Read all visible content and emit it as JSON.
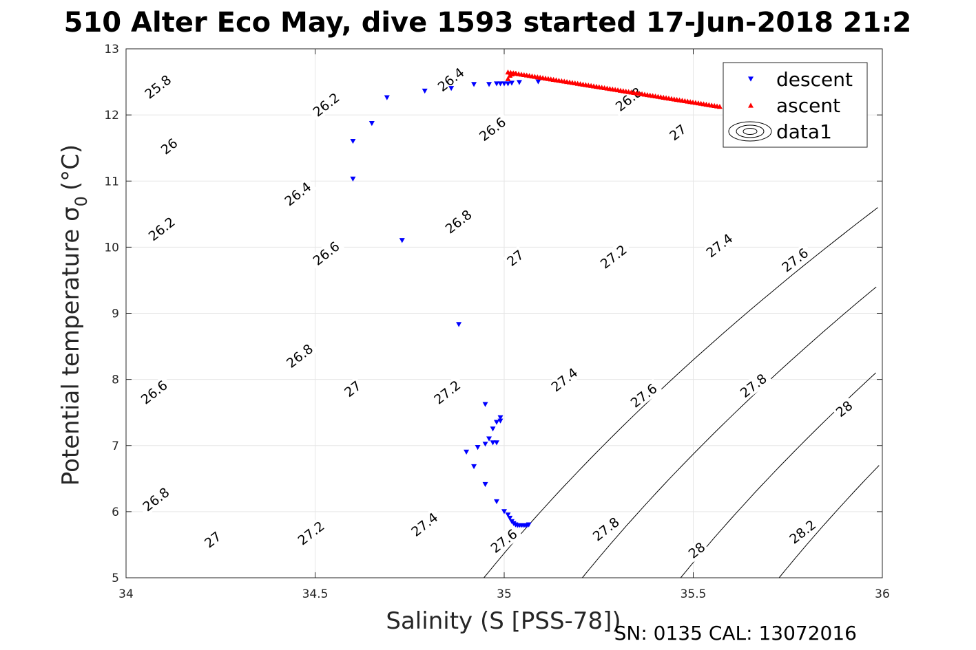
{
  "chart_data": {
    "type": "scatter",
    "title": "510 Alter Eco May, dive 1593 started 17-Jun-2018 21:2",
    "xlabel": "Salinity (S [PSS-78])",
    "ylabel": "Potential temperature σ",
    "ylabel_sub": "0",
    "ylabel_unit": "(°C)",
    "xlim": [
      34,
      36
    ],
    "ylim": [
      5,
      13
    ],
    "xticks": [
      "34",
      "34.5",
      "35",
      "35.5",
      "36"
    ],
    "yticks": [
      "5",
      "6",
      "7",
      "8",
      "9",
      "10",
      "11",
      "12",
      "13"
    ],
    "grid": true,
    "legend_position": "top-right",
    "footer": "SN: 0135  CAL: 13072016",
    "series": [
      {
        "name": "descent",
        "marker": "triangle-down",
        "color": "#0000ff",
        "points": [
          [
            34.6,
            11.6
          ],
          [
            34.6,
            11.03
          ],
          [
            34.65,
            11.87
          ],
          [
            34.69,
            12.26
          ],
          [
            34.79,
            12.36
          ],
          [
            34.86,
            12.4
          ],
          [
            34.92,
            12.46
          ],
          [
            34.96,
            12.46
          ],
          [
            34.98,
            12.47
          ],
          [
            34.99,
            12.47
          ],
          [
            35.0,
            12.47
          ],
          [
            35.01,
            12.47
          ],
          [
            35.02,
            12.48
          ],
          [
            35.04,
            12.49
          ],
          [
            35.09,
            12.5
          ],
          [
            34.73,
            10.1
          ],
          [
            34.88,
            8.83
          ],
          [
            34.95,
            7.62
          ],
          [
            34.99,
            7.42
          ],
          [
            34.99,
            7.37
          ],
          [
            34.98,
            7.35
          ],
          [
            34.97,
            7.25
          ],
          [
            34.96,
            7.1
          ],
          [
            34.95,
            7.02
          ],
          [
            34.97,
            7.04
          ],
          [
            34.98,
            7.04
          ],
          [
            34.93,
            6.97
          ],
          [
            34.9,
            6.9
          ],
          [
            34.92,
            6.68
          ],
          [
            34.95,
            6.41
          ],
          [
            34.98,
            6.15
          ],
          [
            35.0,
            6.0
          ],
          [
            35.01,
            5.95
          ],
          [
            35.015,
            5.9
          ],
          [
            35.02,
            5.85
          ],
          [
            35.025,
            5.82
          ],
          [
            35.03,
            5.8
          ],
          [
            35.035,
            5.79
          ],
          [
            35.04,
            5.79
          ],
          [
            35.045,
            5.79
          ],
          [
            35.05,
            5.79
          ],
          [
            35.055,
            5.79
          ],
          [
            35.06,
            5.79
          ],
          [
            35.065,
            5.8
          ]
        ]
      },
      {
        "name": "ascent",
        "marker": "triangle-up",
        "color": "#ff0000",
        "start": [
          35.01,
          12.65
        ],
        "end": [
          35.57,
          12.13
        ],
        "count": 80,
        "extra_points": [
          [
            35.01,
            12.55
          ],
          [
            35.015,
            12.6
          ],
          [
            35.02,
            12.62
          ],
          [
            35.03,
            12.63
          ]
        ]
      },
      {
        "name": "data1",
        "type": "contour",
        "color": "#000000",
        "levels": [
          25.8,
          26,
          26.2,
          26.4,
          26.6,
          26.8,
          27,
          27.2,
          27.4,
          27.6,
          27.8,
          28,
          28.2
        ],
        "labels": [
          {
            "text": "25.8",
            "x": 34.085,
            "y": 12.42
          },
          {
            "text": "26",
            "x": 34.115,
            "y": 11.52
          },
          {
            "text": "26.2",
            "x": 34.53,
            "y": 12.15
          },
          {
            "text": "26.2",
            "x": 34.095,
            "y": 10.27
          },
          {
            "text": "26.4",
            "x": 34.455,
            "y": 10.8
          },
          {
            "text": "26.4",
            "x": 34.86,
            "y": 12.53
          },
          {
            "text": "26.6",
            "x": 34.075,
            "y": 7.8
          },
          {
            "text": "26.6",
            "x": 34.53,
            "y": 9.9
          },
          {
            "text": "26.6",
            "x": 34.97,
            "y": 11.78
          },
          {
            "text": "26.8",
            "x": 34.08,
            "y": 6.18
          },
          {
            "text": "26.8",
            "x": 34.46,
            "y": 8.35
          },
          {
            "text": "26.8",
            "x": 34.88,
            "y": 10.38
          },
          {
            "text": "26.8",
            "x": 35.33,
            "y": 12.23
          },
          {
            "text": "27",
            "x": 34.23,
            "y": 5.57
          },
          {
            "text": "27",
            "x": 34.6,
            "y": 7.85
          },
          {
            "text": "27",
            "x": 35.03,
            "y": 9.83
          },
          {
            "text": "27",
            "x": 35.46,
            "y": 11.73
          },
          {
            "text": "27.2",
            "x": 34.49,
            "y": 5.67
          },
          {
            "text": "27.2",
            "x": 34.85,
            "y": 7.8
          },
          {
            "text": "27.2",
            "x": 35.29,
            "y": 9.85
          },
          {
            "text": "27.4",
            "x": 34.79,
            "y": 5.8
          },
          {
            "text": "27.4",
            "x": 35.16,
            "y": 7.99
          },
          {
            "text": "27.4",
            "x": 35.57,
            "y": 10.02
          },
          {
            "text": "27.6",
            "x": 35.0,
            "y": 5.55
          },
          {
            "text": "27.6",
            "x": 35.37,
            "y": 7.75
          },
          {
            "text": "27.6",
            "x": 35.77,
            "y": 9.8
          },
          {
            "text": "27.8",
            "x": 35.27,
            "y": 5.73
          },
          {
            "text": "27.8",
            "x": 35.66,
            "y": 7.9
          },
          {
            "text": "28",
            "x": 35.51,
            "y": 5.41
          },
          {
            "text": "28",
            "x": 35.9,
            "y": 7.55
          },
          {
            "text": "28.2",
            "x": 35.79,
            "y": 5.69
          }
        ]
      }
    ]
  }
}
